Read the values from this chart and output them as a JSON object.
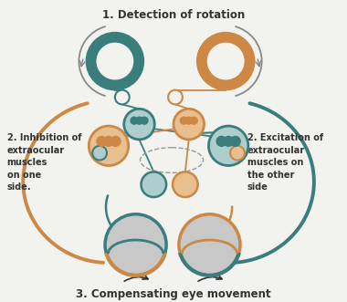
{
  "title_top": "1. Detection of rotation",
  "title_bottom": "3. Compensating eye movement",
  "label_left": "2. Inhibition of\nextraocular\nmuscles\non one\nside.",
  "label_right": "2. Excitation of\nextraocular\nmuscles on\nthe other\nside",
  "teal": "#3a7d7d",
  "orange": "#cc8844",
  "light_teal": "#aecece",
  "light_orange": "#e8c090",
  "gray": "#c8c8c8",
  "bg": "#f2f2ee",
  "dark": "#333333",
  "arrow_gray": "#888888"
}
